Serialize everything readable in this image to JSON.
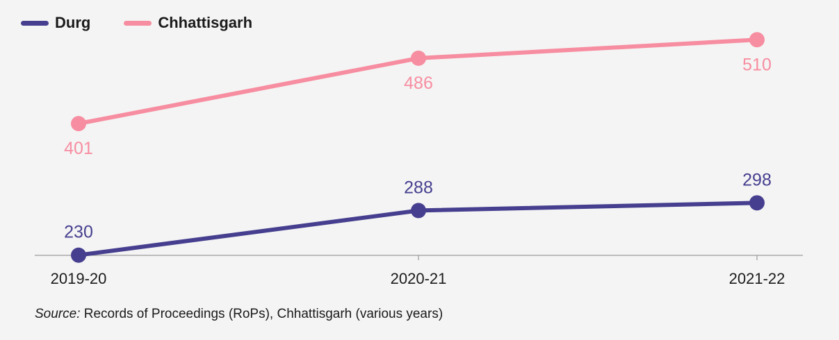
{
  "chart_data": {
    "type": "line",
    "categories": [
      "2019-20",
      "2020-21",
      "2021-22"
    ],
    "series": [
      {
        "name": "Durg",
        "values": [
          230,
          288,
          298
        ],
        "color": "#463f8f",
        "label_position": "above"
      },
      {
        "name": "Chhattisgarh",
        "values": [
          401,
          486,
          510
        ],
        "color": "#f78da0",
        "label_position": "below"
      }
    ],
    "ylim": [
      200,
      540
    ],
    "grid": false,
    "legend_position": "top-left",
    "xlabel": "",
    "ylabel": ""
  },
  "source": {
    "prefix": "Source:",
    "text": "Records of Proceedings (RoPs), Chhattisgarh (various years)"
  }
}
